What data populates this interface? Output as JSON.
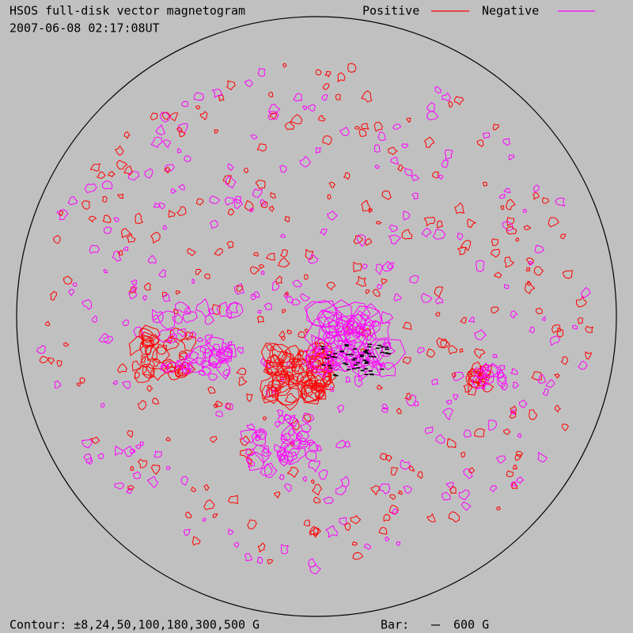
{
  "header": {
    "title": "HSOS full-disk vector magnetogram",
    "timestamp": "2007-06-08 02:17:08UT"
  },
  "legend": [
    {
      "label": "Positive",
      "color": "#ff0000"
    },
    {
      "label": "Negative",
      "color": "#ff00ff"
    }
  ],
  "footer": {
    "contour": "Contour: ±8,24,50,100,180,300,500 G",
    "bar_label": "Bar:",
    "bar_value": "600 G"
  }
}
